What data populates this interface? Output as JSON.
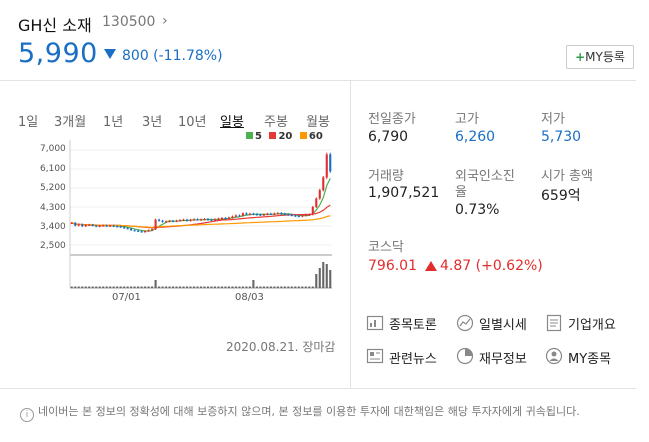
{
  "stock": {
    "name": "GH신 소재",
    "code": "130500",
    "price": "5,990",
    "change": "800 (-11.78%)",
    "my_button": "MY등록",
    "accent_down": "#1a6fc4",
    "accent_up": "#e22d2d"
  },
  "chart": {
    "periods": [
      "1일",
      "3개월",
      "1년",
      "3년",
      "10년",
      "일봉",
      "주봉",
      "월봉"
    ],
    "active_period": "일봉",
    "legend": [
      {
        "label": "5",
        "color": "#4caf50"
      },
      {
        "label": "20",
        "color": "#e53935"
      },
      {
        "label": "60",
        "color": "#ff9800"
      }
    ],
    "date": "2020.08.21. 장마감"
  },
  "chart_data": {
    "type": "candlestick",
    "y_ticks": [
      "7,000",
      "6,100",
      "5,200",
      "4,300",
      "3,400",
      "2,500"
    ],
    "ylim": [
      2500,
      7000
    ],
    "x_ticks": [
      "07/01",
      "08/03"
    ],
    "close": [
      3550,
      3420,
      3480,
      3390,
      3450,
      3460,
      3420,
      3380,
      3410,
      3430,
      3400,
      3420,
      3390,
      3380,
      3350,
      3300,
      3280,
      3200,
      3180,
      3150,
      3120,
      3160,
      3200,
      3250,
      3700,
      3650,
      3600,
      3620,
      3640,
      3630,
      3650,
      3680,
      3700,
      3650,
      3690,
      3720,
      3700,
      3710,
      3730,
      3700,
      3690,
      3720,
      3750,
      3780,
      3760,
      3800,
      3850,
      3900,
      3880,
      4000,
      3950,
      3980,
      3960,
      3940,
      3920,
      3950,
      3980,
      3970,
      3990,
      4010,
      3980,
      3950,
      3930,
      3900,
      3880,
      3860,
      3900,
      3930,
      3950,
      4300,
      4700,
      5100,
      5700,
      6790,
      5990
    ],
    "series": [
      {
        "name": "5",
        "values": []
      },
      {
        "name": "20",
        "values": []
      },
      {
        "name": "60",
        "values": []
      }
    ]
  },
  "info": {
    "prev_close_label": "전일종가",
    "prev_close": "6,790",
    "high_label": "고가",
    "high": "6,260",
    "low_label": "저가",
    "low": "5,730",
    "volume_label": "거래량",
    "volume": "1,907,521",
    "foreign_label_1": "외국인소진",
    "foreign_label_2": "율",
    "foreign": "0.73%",
    "mcap_label": "시가 총액",
    "mcap": "659억"
  },
  "kosdaq": {
    "label": "코스닥",
    "value": "796.01",
    "change": "4.87 (+0.62%)"
  },
  "links": [
    "종목토론",
    "일별시세",
    "기업개요",
    "관련뉴스",
    "재무정보",
    "MY종목"
  ],
  "notice": "네이버는 본 정보의 정확성에 대해 보증하지 않으며, 본 정보를 이용한 투자에 대한책임은 해당 투자자에게 귀속됩니다."
}
